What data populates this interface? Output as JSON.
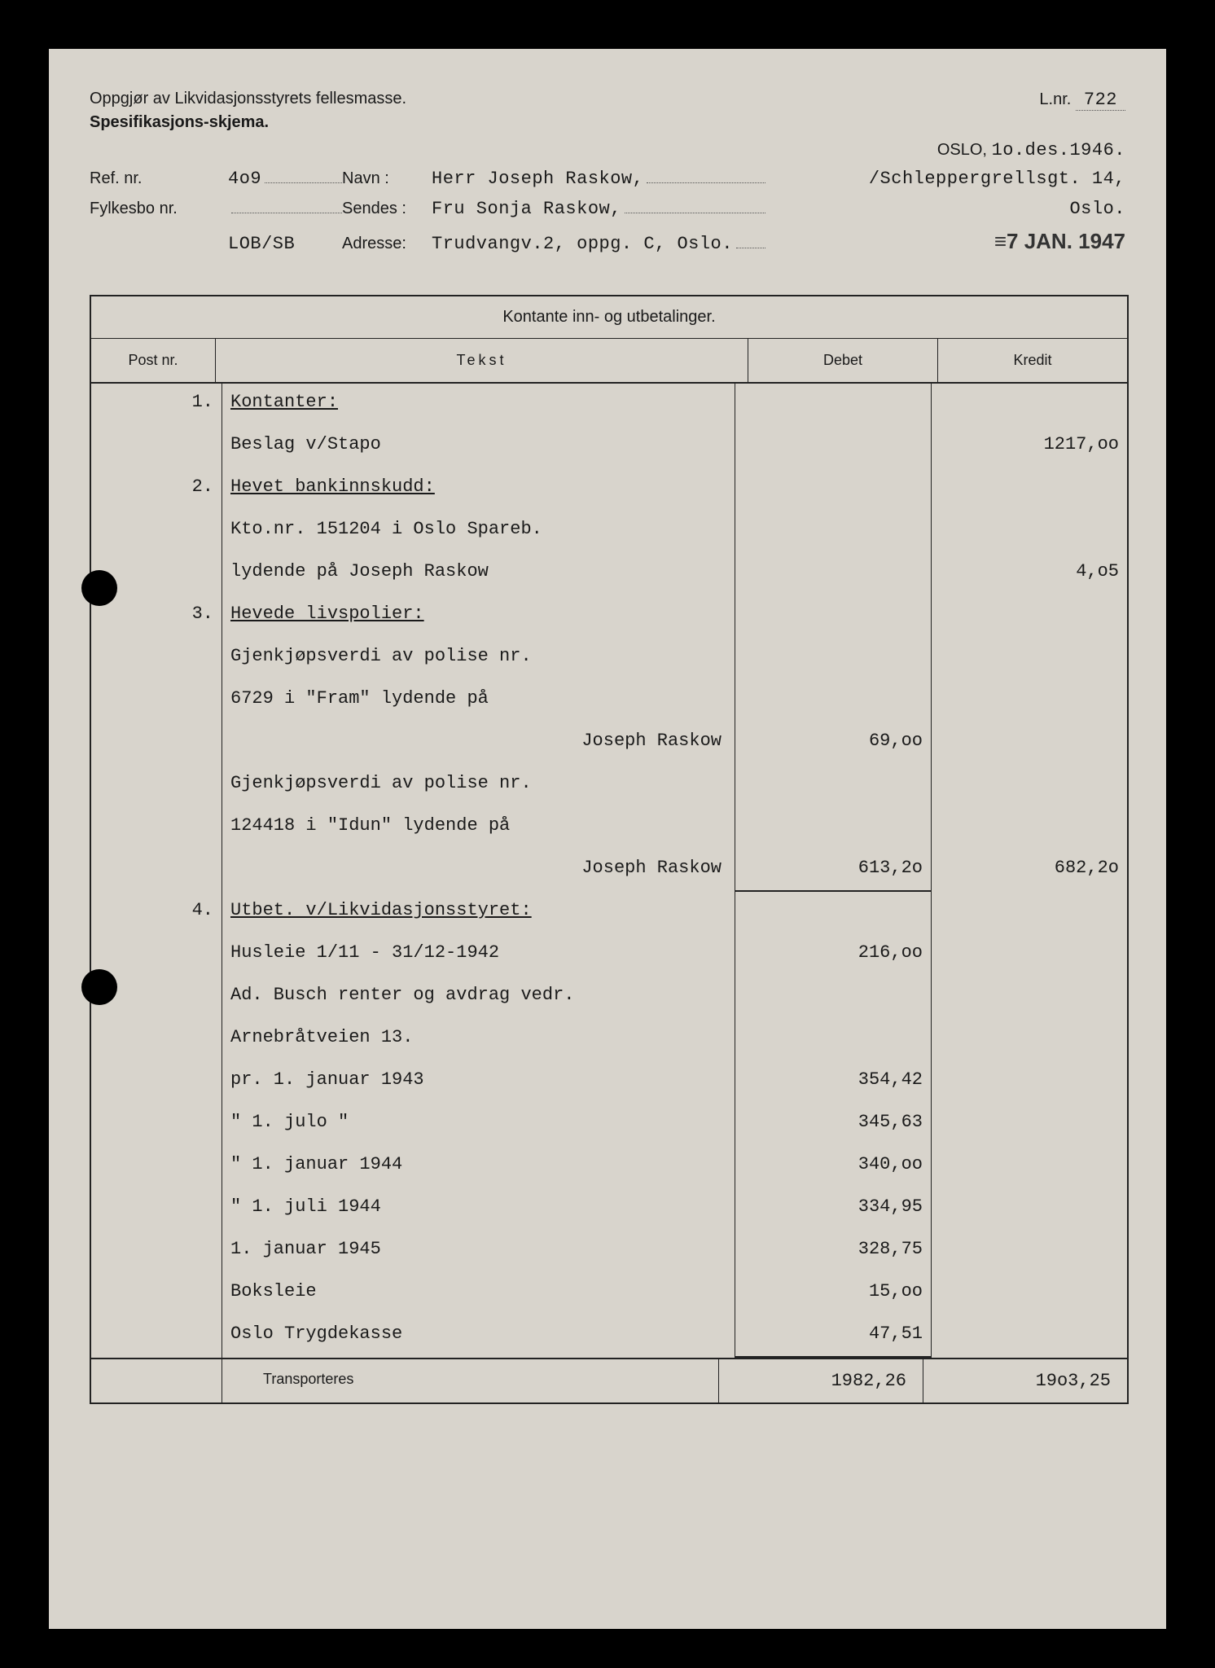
{
  "header": {
    "line1_left": "Oppgjør av Likvidasjonsstyrets fellesmasse.",
    "line1_right_label": "L.nr.",
    "line1_right_value": "722",
    "line2_left": "Spesifikasjons-skjema.",
    "oslo_label": "OSLO,",
    "oslo_date": "1o.des.1946.",
    "ref_label": "Ref. nr.",
    "ref_value": "4o9",
    "navn_label": "Navn :",
    "navn_value": "Herr Joseph Raskow,",
    "addr_right1": "/Schleppergrellsgt. 14,",
    "fylkes_label": "Fylkesbo nr.",
    "fylkes_value": "",
    "sendes_label": "Sendes :",
    "sendes_value": "Fru Sonja Raskow,",
    "addr_right2": "Oslo.",
    "lob": "LOB/SB",
    "adresse_label": "Adresse:",
    "adresse_value": "Trudvangv.2, oppg. C, Oslo.",
    "stamp": "≡7 JAN. 1947"
  },
  "ledger": {
    "title": "Kontante inn- og utbetalinger.",
    "col_post": "Post nr.",
    "col_tekst": "Tekst",
    "col_debet": "Debet",
    "col_kredit": "Kredit",
    "transport_label": "Transporteres",
    "transport_debet": "1982,26",
    "transport_kredit": "19o3,25"
  },
  "rows": [
    {
      "post": "1.",
      "tekst": "Kontanter:",
      "u": true
    },
    {
      "tekst": "Beslag v/Stapo",
      "kredit": "1217,oo"
    },
    {
      "post": "2.",
      "tekst": "Hevet bankinnskudd:",
      "u": true
    },
    {
      "tekst": "Kto.nr. 151204 i Oslo Spareb."
    },
    {
      "tekst": "lydende på  Joseph Raskow",
      "kredit": "4,o5"
    },
    {
      "post": "3.",
      "tekst": "Hevede livspolier:",
      "u": true
    },
    {
      "tekst": "Gjenkjøpsverdi av polise nr."
    },
    {
      "tekst": "6729 i \"Fram\" lydende på"
    },
    {
      "tekst_right": "Joseph Raskow",
      "debet": "69,oo"
    },
    {
      "tekst": "Gjenkjøpsverdi av polise nr."
    },
    {
      "tekst": "124418 i \"Idun\" lydende på"
    },
    {
      "tekst_right": "Joseph Raskow",
      "debet": "613,2o",
      "kredit": "682,2o",
      "sumline": true
    },
    {
      "post": "4.",
      "tekst": "Utbet. v/Likvidasjonsstyret:",
      "u": true
    },
    {
      "tekst": "Husleie 1/11 - 31/12-1942",
      "debet": "216,oo"
    },
    {
      "tekst": "Ad. Busch renter og avdrag vedr."
    },
    {
      "tekst": "Arnebråtveien 13."
    },
    {
      "tekst": "pr. 1. januar 1943",
      "debet": "354,42"
    },
    {
      "tekst": "\"   1. julo    \"",
      "debet": "345,63"
    },
    {
      "tekst": "\"   1. januar 1944",
      "debet": "340,oo"
    },
    {
      "tekst": "\"   1. juli   1944",
      "debet": "334,95"
    },
    {
      "tekst": "    1. januar 1945",
      "debet": "328,75"
    },
    {
      "tekst": "Boksleie",
      "debet": "15,oo"
    },
    {
      "tekst": "Oslo Trygdekasse",
      "debet": "47,51",
      "sumline": true
    }
  ]
}
